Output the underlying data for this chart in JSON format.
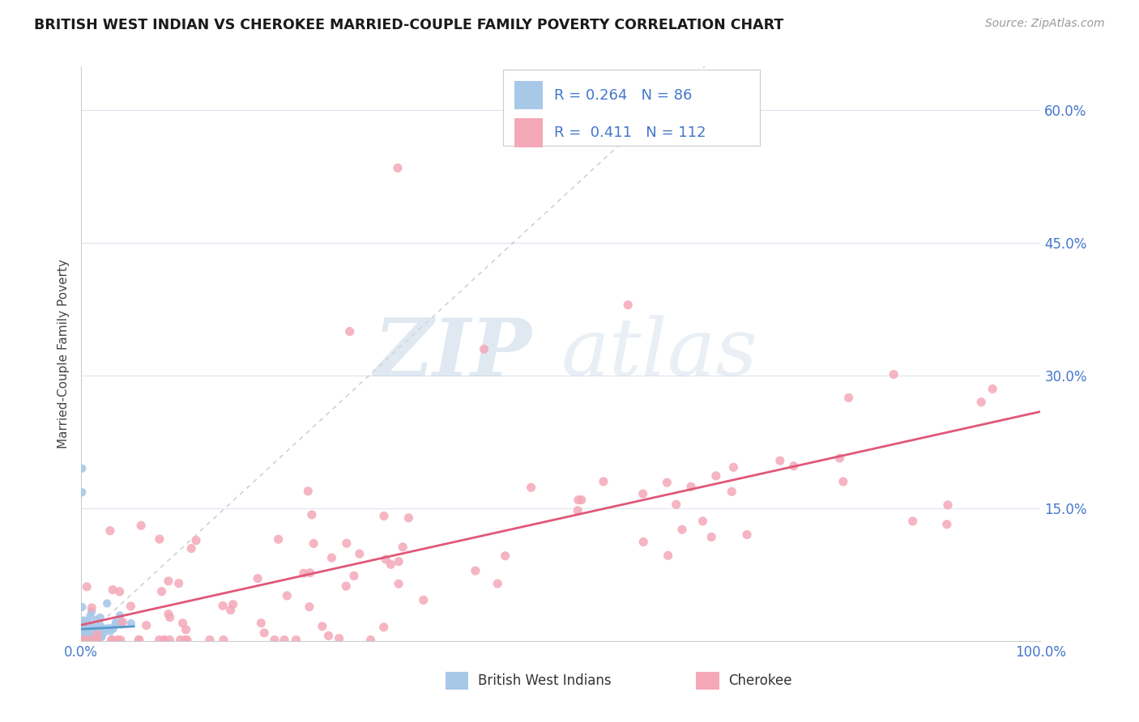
{
  "title": "BRITISH WEST INDIAN VS CHEROKEE MARRIED-COUPLE FAMILY POVERTY CORRELATION CHART",
  "source": "Source: ZipAtlas.com",
  "ylabel": "Married-Couple Family Poverty",
  "xlim": [
    0,
    1.0
  ],
  "ylim": [
    0,
    0.65
  ],
  "legend_labels": [
    "British West Indians",
    "Cherokee"
  ],
  "legend_r_bwi": "0.264",
  "legend_n_bwi": "86",
  "legend_r_cher": "0.411",
  "legend_n_cher": "112",
  "color_bwi": "#a8c8e8",
  "color_bwi_line": "#5599cc",
  "color_cher": "#f4a8b8",
  "color_cher_line": "#e05878",
  "color_diag": "#b8b8b8",
  "color_axis_label": "#4477cc",
  "color_grid": "#dde4f0",
  "watermark_zip": "ZIP",
  "watermark_atlas": "atlas"
}
